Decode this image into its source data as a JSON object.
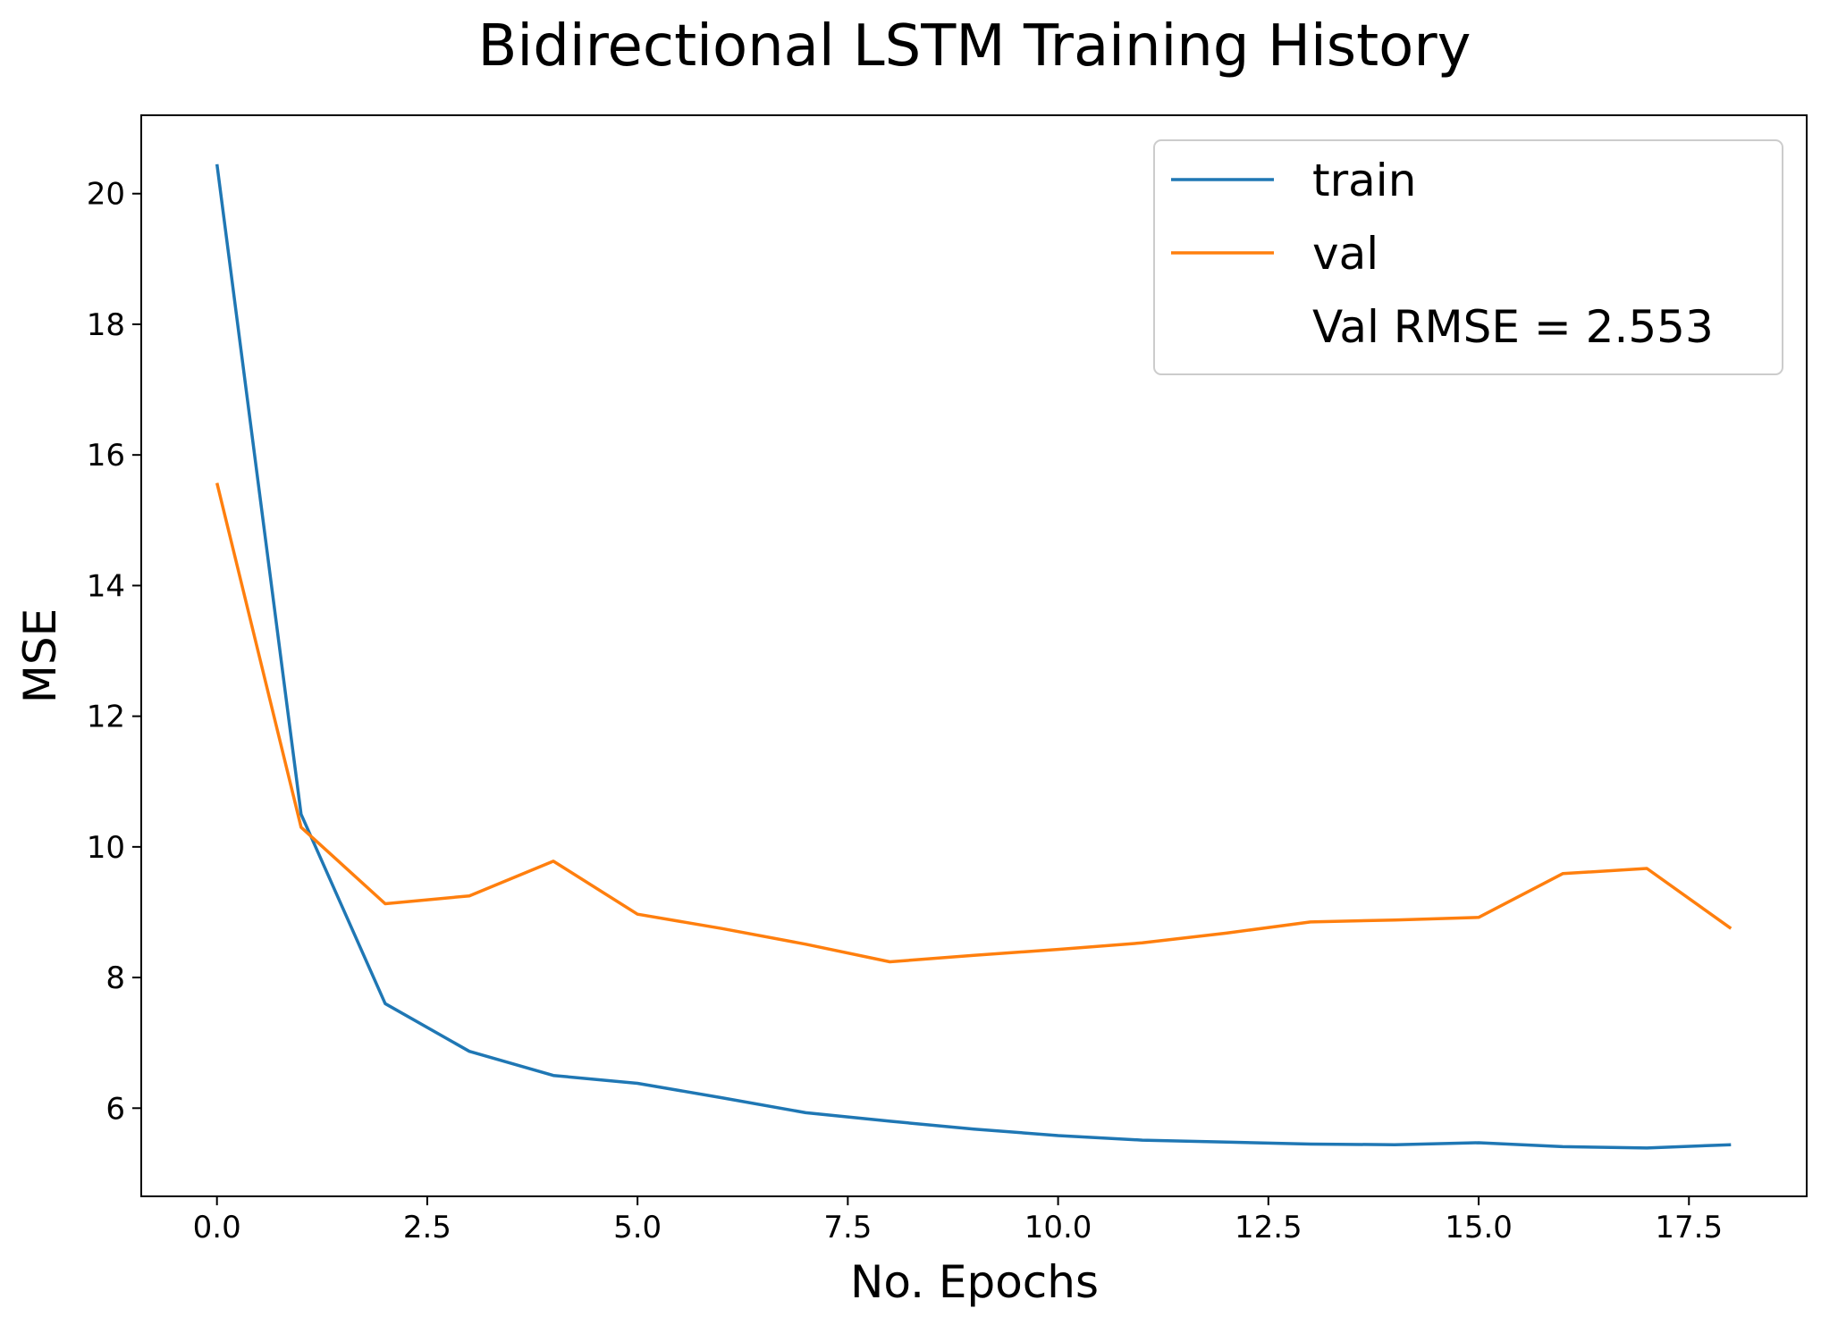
{
  "chart_data": {
    "type": "line",
    "title": "Bidirectional LSTM Training History",
    "xlabel": "No. Epochs",
    "ylabel": "MSE",
    "xlim": [
      -0.9,
      18.9
    ],
    "ylim": [
      4.65,
      21.2
    ],
    "xticks": [
      0.0,
      2.5,
      5.0,
      7.5,
      10.0,
      12.5,
      15.0,
      17.5
    ],
    "xtick_labels": [
      "0.0",
      "2.5",
      "5.0",
      "7.5",
      "10.0",
      "12.5",
      "15.0",
      "17.5"
    ],
    "yticks": [
      6,
      8,
      10,
      12,
      14,
      16,
      18,
      20
    ],
    "ytick_labels": [
      "6",
      "8",
      "10",
      "12",
      "14",
      "16",
      "18",
      "20"
    ],
    "grid": false,
    "legend_position": "top-right",
    "x": [
      0,
      1,
      2,
      3,
      4,
      5,
      6,
      7,
      8,
      9,
      10,
      11,
      12,
      13,
      14,
      15,
      16,
      17,
      18
    ],
    "series": [
      {
        "name": "train",
        "color": "#1f77b4",
        "values": [
          20.45,
          10.5,
          7.6,
          6.87,
          6.5,
          6.38,
          6.16,
          5.93,
          5.8,
          5.68,
          5.58,
          5.51,
          5.48,
          5.45,
          5.44,
          5.47,
          5.41,
          5.39,
          5.44
        ]
      },
      {
        "name": "val",
        "color": "#ff7f0e",
        "values": [
          15.57,
          10.3,
          9.13,
          9.25,
          9.78,
          8.97,
          8.75,
          8.51,
          8.24,
          8.34,
          8.43,
          8.53,
          8.68,
          8.85,
          8.88,
          8.92,
          9.59,
          9.67,
          8.75
        ]
      }
    ],
    "legend_extra": "Val RMSE = 2.553"
  }
}
